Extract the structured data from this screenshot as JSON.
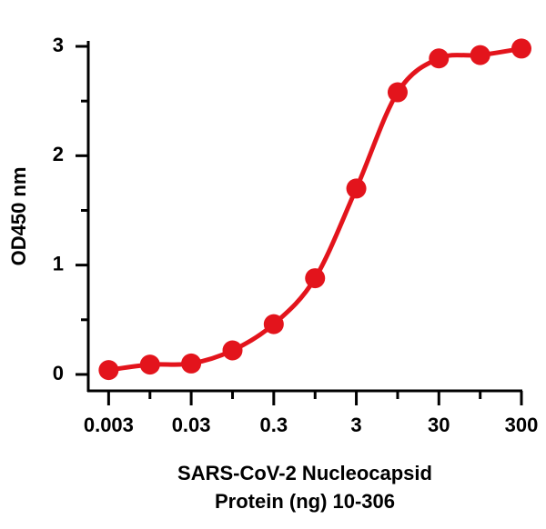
{
  "chart_data": {
    "type": "scatter",
    "x_label": [
      "SARS-CoV-2 Nucleocapsid",
      "Protein (ng) 10-306"
    ],
    "y_label": "OD450 nm",
    "x_log": true,
    "series": [
      {
        "name": "10-306",
        "color": "#e3141c",
        "x": [
          0.003,
          0.0095,
          0.03,
          0.095,
          0.3,
          0.95,
          3,
          9.5,
          30,
          95,
          300
        ],
        "values": [
          0.04,
          0.09,
          0.1,
          0.22,
          0.46,
          0.88,
          1.7,
          2.58,
          2.89,
          2.92,
          2.98
        ]
      }
    ],
    "xlim": [
      0.0017,
      300
    ],
    "xticks": [
      0.003,
      0.03,
      0.3,
      3,
      30,
      300
    ],
    "xminorticks": [
      0.0095,
      0.095,
      0.95,
      9.5,
      95
    ],
    "ylim": [
      -0.15,
      3.05
    ],
    "yticks": [
      0,
      1,
      2,
      3
    ],
    "yminorticks": [
      0.5,
      1.5,
      2.5
    ]
  }
}
